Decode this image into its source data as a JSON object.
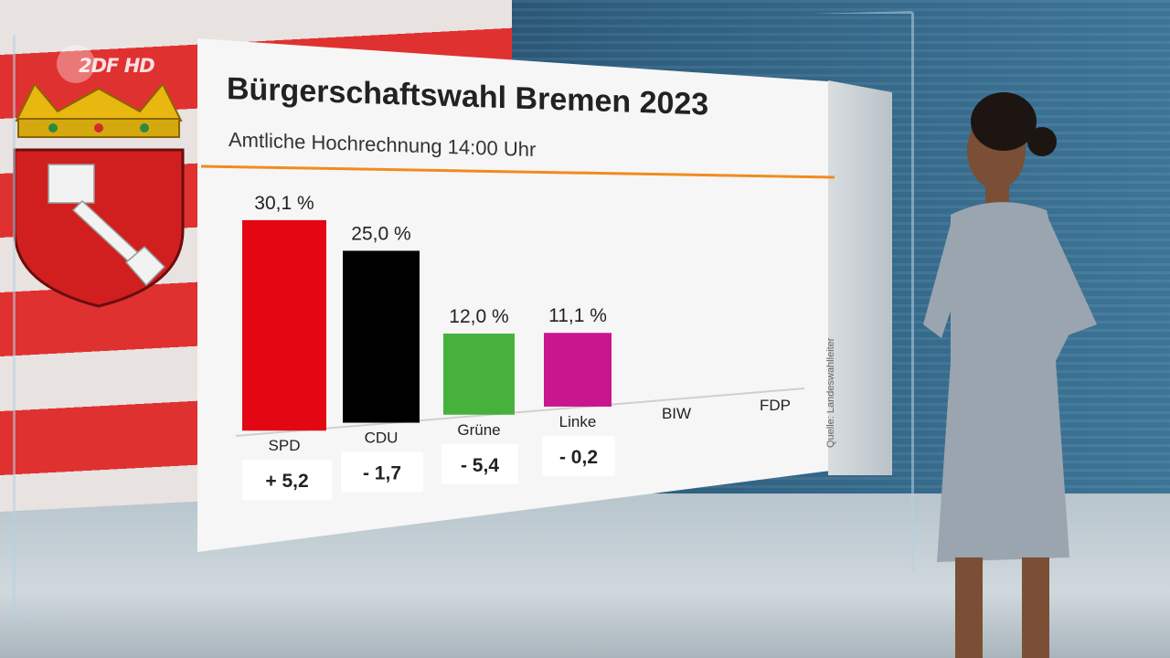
{
  "broadcaster": {
    "logo_text": "2DF HD"
  },
  "chart_data": {
    "type": "bar",
    "title": "Bürgerschaftswahl Bremen 2023",
    "subtitle": "Amtliche Hochrechnung 14:00 Uhr",
    "categories": [
      "SPD",
      "CDU",
      "Grüne",
      "Linke",
      "BIW",
      "FDP"
    ],
    "values": [
      30.1,
      25.0,
      12.0,
      11.1,
      null,
      null
    ],
    "value_labels": [
      "30,1 %",
      "25,0 %",
      "12,0 %",
      "11,1 %",
      "",
      ""
    ],
    "change_labels": [
      "+ 5,2",
      "- 1,7",
      "- 5,4",
      "- 0,2",
      "",
      ""
    ],
    "colors": [
      "#e30613",
      "#000000",
      "#46b23c",
      "#c8168e",
      "#bbbbbb",
      "#bbbbbb"
    ],
    "accent_color": "#f08c1e",
    "ylim": [
      0,
      30.1
    ],
    "grid": false,
    "source_note": "Quelle: Landeswahlleiter"
  }
}
